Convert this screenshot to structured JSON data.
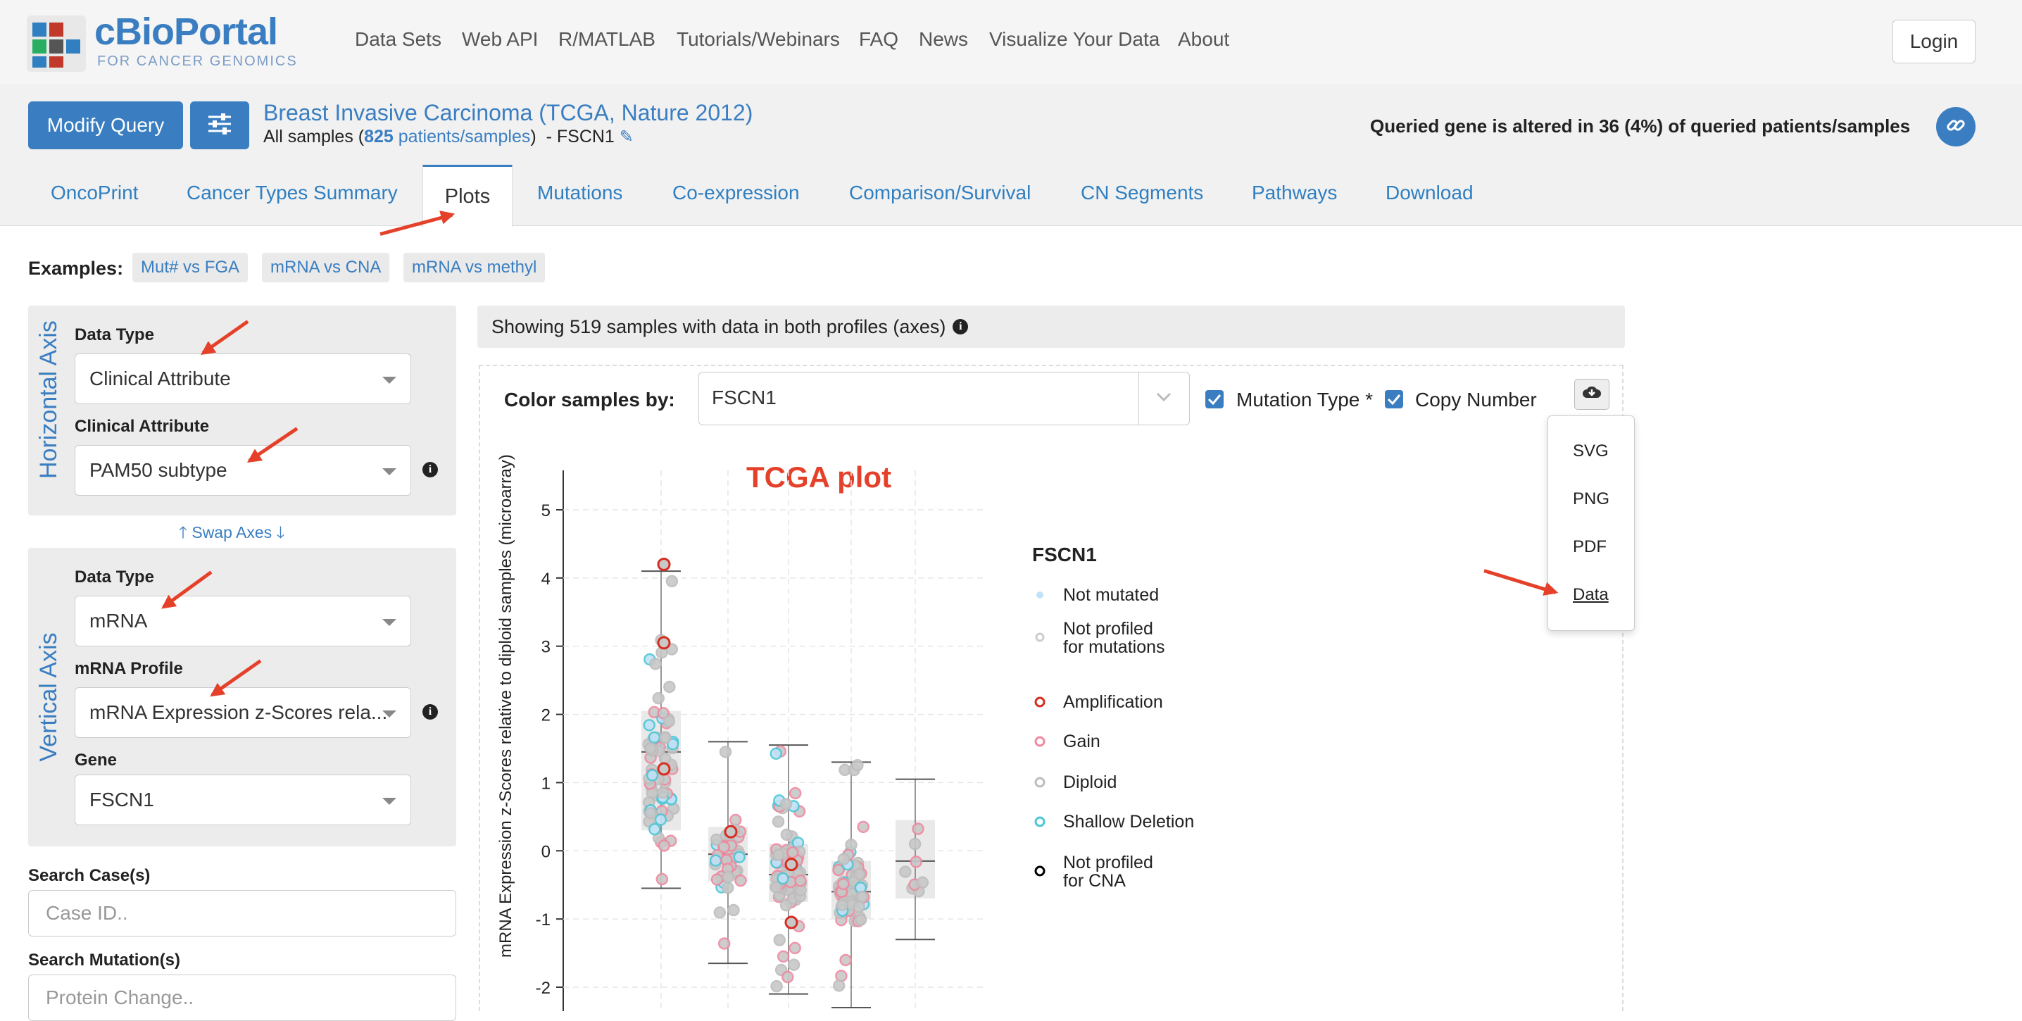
{
  "brand": {
    "name": "cBioPortal",
    "tagline": "FOR CANCER GENOMICS"
  },
  "nav": {
    "items": [
      "Data Sets",
      "Web API",
      "R/MATLAB",
      "Tutorials/Webinars",
      "FAQ",
      "News",
      "Visualize Your Data",
      "About"
    ],
    "login": "Login"
  },
  "query": {
    "modify_label": "Modify Query",
    "study_title": "Breast Invasive Carcinoma (TCGA, Nature 2012)",
    "samples_prefix": "All samples (",
    "sample_count": "825",
    "samples_link": "patients/samples",
    "samples_suffix": ")",
    "gene_suffix": "- FSCN1",
    "altered_summary": "Queried gene is altered in 36 (4%) of queried patients/samples"
  },
  "tabs": [
    "OncoPrint",
    "Cancer Types Summary",
    "Plots",
    "Mutations",
    "Co-expression",
    "Comparison/Survival",
    "CN Segments",
    "Pathways",
    "Download"
  ],
  "active_tab": "Plots",
  "examples": {
    "label": "Examples:",
    "chips": [
      "Mut# vs FGA",
      "mRNA vs CNA",
      "mRNA vs methyl"
    ]
  },
  "horizontal_axis": {
    "title": "Horizontal Axis",
    "data_type_label": "Data Type",
    "data_type_value": "Clinical Attribute",
    "attr_label": "Clinical Attribute",
    "attr_value": "PAM50 subtype"
  },
  "swap_axes": "Swap Axes",
  "vertical_axis": {
    "title": "Vertical Axis",
    "data_type_label": "Data Type",
    "data_type_value": "mRNA",
    "profile_label": "mRNA Profile",
    "profile_value": "mRNA Expression z-Scores rela...",
    "gene_label": "Gene",
    "gene_value": "FSCN1"
  },
  "search": {
    "case_label": "Search Case(s)",
    "case_placeholder": "Case ID..",
    "mutation_label": "Search Mutation(s)",
    "mutation_placeholder": "Protein Change.."
  },
  "plot": {
    "showing_text": "Showing 519 samples with data in both profiles (axes)",
    "color_by_label": "Color samples by:",
    "color_by_value": "FSCN1",
    "mutation_type_label": "Mutation Type *",
    "copy_number_label": "Copy Number",
    "download_menu": [
      "SVG",
      "PNG",
      "PDF",
      "Data"
    ],
    "annotation_title": "TCGA plot",
    "colors": {
      "accent": "#3a7ec1",
      "amplification": "#d62d20",
      "gain": "#ef8aa0",
      "diploid": "#bdbdbd",
      "shallow_deletion": "#4ec7d6",
      "not_mutated": "#bfe3f7",
      "annotation": "#e5412a"
    }
  },
  "chart_data": {
    "type": "scatter",
    "ylabel": "mRNA Expression z-Scores relative to diploid samples (microarray)",
    "yticks": [
      5,
      4,
      3,
      2,
      1,
      0,
      -1,
      -2
    ],
    "ylim": [
      -2.3,
      5.5
    ],
    "categories_count": 5,
    "boxes": [
      {
        "q1": 0.3,
        "median": 1.45,
        "q3": 2.05,
        "low": -0.55,
        "high": 4.1
      },
      {
        "q1": -0.45,
        "median": -0.05,
        "q3": 0.35,
        "low": -1.65,
        "high": 1.6
      },
      {
        "q1": -0.75,
        "median": -0.35,
        "q3": 0.1,
        "low": -2.1,
        "high": 1.55
      },
      {
        "q1": -1.0,
        "median": -0.6,
        "q3": -0.15,
        "low": -2.3,
        "high": 1.3
      },
      {
        "q1": -0.7,
        "median": -0.15,
        "q3": 0.45,
        "low": -1.3,
        "high": 1.05
      }
    ],
    "highlighted_points": [
      {
        "category": 1,
        "y": 4.2,
        "type": "amplification"
      },
      {
        "category": 1,
        "y": 3.05,
        "type": "amplification"
      },
      {
        "category": 1,
        "y": 1.2,
        "type": "amplification"
      },
      {
        "category": 2,
        "y": 0.28,
        "type": "amplification"
      },
      {
        "category": 3,
        "y": -0.2,
        "type": "amplification"
      },
      {
        "category": 3,
        "y": -1.05,
        "type": "amplification"
      }
    ],
    "legend_title": "FSCN1",
    "legend_mutation": [
      {
        "label": "Not mutated",
        "style": "not_mutated"
      },
      {
        "label": "Not profiled\nfor mutations",
        "style": "not_profiled_mut"
      }
    ],
    "legend_cna": [
      {
        "label": "Amplification",
        "style": "amplification"
      },
      {
        "label": "Gain",
        "style": "gain"
      },
      {
        "label": "Diploid",
        "style": "diploid"
      },
      {
        "label": "Shallow Deletion",
        "style": "shallow_deletion"
      },
      {
        "label": "Not profiled\nfor CNA",
        "style": "not_profiled_cna"
      }
    ]
  }
}
